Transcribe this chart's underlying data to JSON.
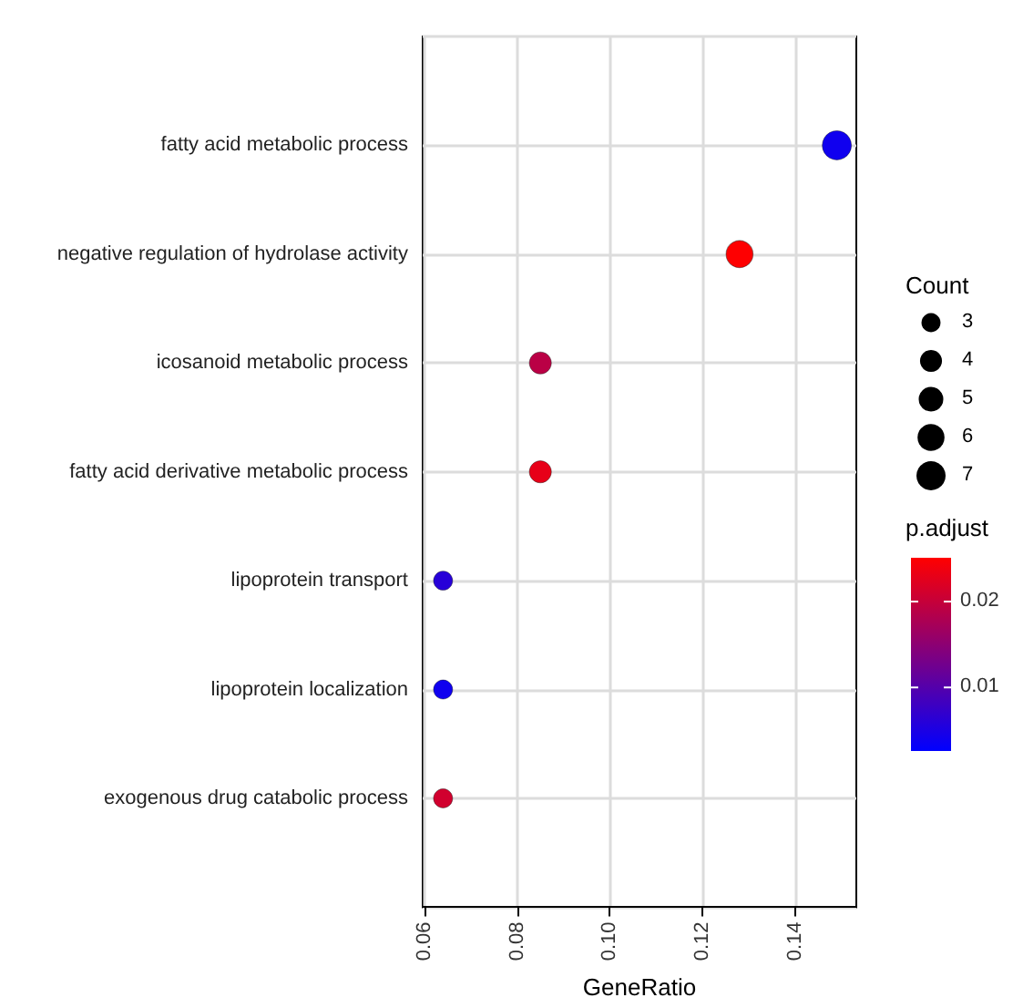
{
  "chart_data": {
    "type": "bubble",
    "xlabel": "GeneRatio",
    "categories": [
      "fatty acid metabolic process",
      "negative regulation of hydrolase activity",
      "icosanoid metabolic process",
      "fatty acid derivative metabolic process",
      "lipoprotein transport",
      "lipoprotein localization",
      "exogenous drug catabolic process"
    ],
    "orientation": "horizontal",
    "values": [
      0.149,
      0.128,
      0.085,
      0.085,
      0.064,
      0.064,
      0.064
    ],
    "sizes": [
      7,
      6,
      4,
      4,
      3,
      3,
      3
    ],
    "size_legend": [
      3,
      4,
      5,
      6,
      7
    ],
    "legend_title": "Count",
    "cvalues": [
      0.004,
      0.025,
      0.019,
      0.023,
      0.006,
      0.004,
      0.021
    ],
    "clabel": "p.adjust",
    "clim": [
      0.0026,
      0.0251
    ],
    "cticks": [
      0.01,
      0.02
    ],
    "xlim": [
      0.0596,
      0.1532
    ],
    "xticks": [
      0.06,
      0.08,
      {
        "value": 0.1,
        "label": "0.10"
      },
      0.12,
      0.14
    ],
    "grid": true,
    "marker": "circle"
  }
}
